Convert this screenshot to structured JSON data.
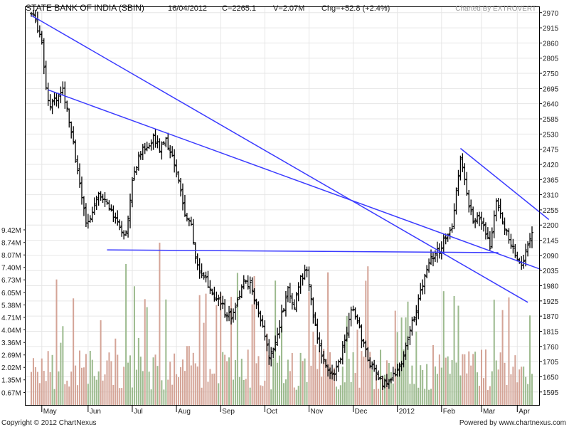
{
  "header": {
    "title": "STATE BANK OF INDIA (SBIN)",
    "date": "16/04/2012",
    "close": "C=2265.1",
    "volume": "V=2.07M",
    "change": "Chg=+52.8 (+2.4%)",
    "credit": "Charted By EXTROVERT"
  },
  "footer": {
    "copyright": "Copyright © 2012 ChartNexus",
    "powered": "Powered by www.chartnexus.com"
  },
  "colors": {
    "bars": "#000000",
    "trendline": "#3b3bff",
    "volume_up": "#9cba8e",
    "volume_down": "#d4a497",
    "grid": "#e6e6e6"
  },
  "chart_data": {
    "type": "ohlc",
    "price_axis": {
      "labels": [
        "2970",
        "2915",
        "2860",
        "2805",
        "2750",
        "2695",
        "2640",
        "2585",
        "2530",
        "2475",
        "2420",
        "2365",
        "2310",
        "2255",
        "2200",
        "2145",
        "2090",
        "2035",
        "1980",
        "1925",
        "1870",
        "1815",
        "1760",
        "1705",
        "1650",
        "1595"
      ],
      "ylim": [
        1548,
        2990
      ]
    },
    "volume_axis": {
      "labels": [
        "9.42M",
        "8.74M",
        "8.07M",
        "7.40M",
        "6.73M",
        "6.05M",
        "5.38M",
        "4.71M",
        "4.04M",
        "3.36M",
        "2.69M",
        "2.02M",
        "1.35M",
        "0.67M"
      ],
      "ylim": [
        0,
        10.3
      ]
    },
    "x_labels": [
      "May",
      "Jun",
      "Jul",
      "Aug",
      "Sep",
      "Oct",
      "Nov",
      "Dec",
      "2012",
      "Feb",
      "Mar",
      "Apr"
    ],
    "x_range": [
      0,
      238
    ],
    "x_label_index": [
      5,
      27,
      48,
      69,
      90,
      111,
      132,
      153,
      174,
      195,
      214,
      231
    ],
    "anchors": [
      [
        0,
        2965
      ],
      [
        2,
        2940
      ],
      [
        5,
        2870
      ],
      [
        7,
        2700
      ],
      [
        9,
        2630
      ],
      [
        12,
        2660
      ],
      [
        15,
        2690
      ],
      [
        17,
        2630
      ],
      [
        20,
        2490
      ],
      [
        23,
        2350
      ],
      [
        26,
        2200
      ],
      [
        29,
        2250
      ],
      [
        32,
        2320
      ],
      [
        35,
        2300
      ],
      [
        38,
        2250
      ],
      [
        41,
        2200
      ],
      [
        43,
        2160
      ],
      [
        45,
        2170
      ],
      [
        47,
        2300
      ],
      [
        49,
        2400
      ],
      [
        52,
        2460
      ],
      [
        55,
        2490
      ],
      [
        58,
        2520
      ],
      [
        61,
        2480
      ],
      [
        64,
        2510
      ],
      [
        67,
        2440
      ],
      [
        70,
        2350
      ],
      [
        73,
        2250
      ],
      [
        76,
        2200
      ],
      [
        78,
        2080
      ],
      [
        80,
        2020
      ],
      [
        83,
        2000
      ],
      [
        86,
        1960
      ],
      [
        89,
        1930
      ],
      [
        92,
        1890
      ],
      [
        95,
        1870
      ],
      [
        98,
        1920
      ],
      [
        101,
        2000
      ],
      [
        104,
        1980
      ],
      [
        107,
        1910
      ],
      [
        110,
        1820
      ],
      [
        113,
        1720
      ],
      [
        116,
        1760
      ],
      [
        119,
        1870
      ],
      [
        122,
        1960
      ],
      [
        125,
        1900
      ],
      [
        128,
        2000
      ],
      [
        131,
        2040
      ],
      [
        134,
        1880
      ],
      [
        137,
        1760
      ],
      [
        140,
        1680
      ],
      [
        143,
        1660
      ],
      [
        146,
        1700
      ],
      [
        149,
        1780
      ],
      [
        152,
        1900
      ],
      [
        155,
        1850
      ],
      [
        158,
        1760
      ],
      [
        161,
        1700
      ],
      [
        164,
        1660
      ],
      [
        167,
        1620
      ],
      [
        170,
        1640
      ],
      [
        173,
        1660
      ],
      [
        176,
        1700
      ],
      [
        179,
        1790
      ],
      [
        182,
        1870
      ],
      [
        185,
        1960
      ],
      [
        188,
        2050
      ],
      [
        191,
        2090
      ],
      [
        194,
        2110
      ],
      [
        197,
        2160
      ],
      [
        200,
        2200
      ],
      [
        202,
        2330
      ],
      [
        204,
        2440
      ],
      [
        206,
        2380
      ],
      [
        208,
        2280
      ],
      [
        210,
        2200
      ],
      [
        212,
        2240
      ],
      [
        215,
        2210
      ],
      [
        218,
        2120
      ],
      [
        221,
        2300
      ],
      [
        224,
        2220
      ],
      [
        227,
        2150
      ],
      [
        230,
        2100
      ],
      [
        233,
        2060
      ],
      [
        236,
        2120
      ],
      [
        238,
        2180
      ],
      [
        240,
        2230
      ],
      [
        243,
        2255
      ]
    ],
    "trendlines": [
      {
        "from": [
          0,
          2960
        ],
        "to": [
          236,
          1920
        ]
      },
      {
        "from": [
          8,
          2690
        ],
        "to": [
          242,
          2040
        ]
      },
      {
        "from": [
          36,
          2110
        ],
        "to": [
          222,
          2100
        ]
      },
      {
        "from": [
          204,
          2478
        ],
        "to": [
          246,
          2220
        ]
      }
    ]
  }
}
